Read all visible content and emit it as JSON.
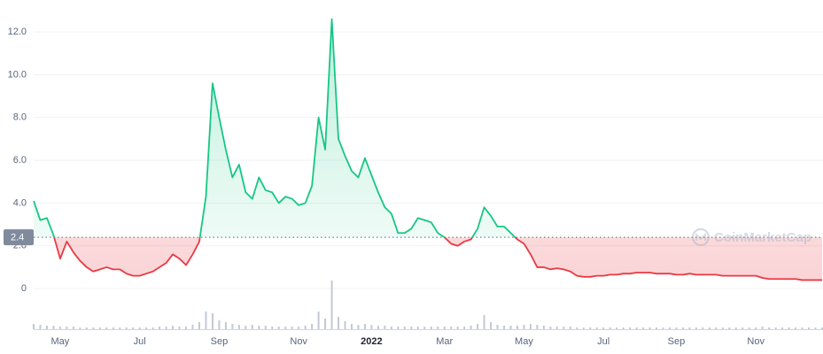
{
  "chart_data": {
    "type": "line",
    "categories": [
      null,
      null,
      null,
      null,
      "May",
      null,
      null,
      null,
      null,
      null,
      null,
      null,
      null,
      null,
      null,
      null,
      "Jul",
      null,
      null,
      null,
      null,
      null,
      null,
      null,
      null,
      null,
      null,
      null,
      "Sep",
      null,
      null,
      null,
      null,
      null,
      null,
      null,
      null,
      null,
      null,
      null,
      "Nov",
      null,
      null,
      null,
      null,
      null,
      null,
      null,
      null,
      null,
      null,
      "2022",
      null,
      null,
      null,
      null,
      null,
      null,
      null,
      null,
      null,
      null,
      "Mar",
      null,
      null,
      null,
      null,
      null,
      null,
      null,
      null,
      null,
      null,
      null,
      "May",
      null,
      null,
      null,
      null,
      null,
      null,
      null,
      null,
      null,
      null,
      null,
      "Jul",
      null,
      null,
      null,
      null,
      null,
      null,
      null,
      null,
      null,
      null,
      "Sep",
      null,
      null,
      null,
      null,
      null,
      null,
      null,
      null,
      null,
      null,
      null,
      "Nov",
      null,
      null,
      null,
      null,
      null,
      null,
      null,
      null,
      null,
      null
    ],
    "values": [
      4.1,
      3.2,
      3.3,
      2.5,
      1.4,
      2.2,
      1.7,
      1.3,
      1.0,
      0.8,
      0.9,
      1.0,
      0.9,
      0.9,
      0.7,
      0.6,
      0.6,
      0.7,
      0.8,
      1.0,
      1.2,
      1.6,
      1.4,
      1.1,
      1.6,
      2.2,
      4.3,
      9.6,
      8.0,
      6.5,
      5.2,
      5.8,
      4.5,
      4.2,
      5.2,
      4.6,
      4.5,
      4.0,
      4.3,
      4.2,
      3.9,
      4.0,
      4.8,
      8.0,
      6.5,
      12.6,
      7.0,
      6.2,
      5.5,
      5.2,
      6.1,
      5.3,
      4.5,
      3.8,
      3.5,
      2.6,
      2.6,
      2.8,
      3.3,
      3.2,
      3.1,
      2.6,
      2.4,
      2.1,
      2.0,
      2.2,
      2.3,
      2.8,
      3.8,
      3.4,
      2.9,
      2.9,
      2.6,
      2.3,
      2.1,
      1.6,
      1.0,
      1.0,
      0.9,
      0.95,
      0.9,
      0.8,
      0.6,
      0.55,
      0.55,
      0.6,
      0.6,
      0.65,
      0.65,
      0.7,
      0.7,
      0.75,
      0.75,
      0.75,
      0.7,
      0.7,
      0.7,
      0.65,
      0.65,
      0.7,
      0.65,
      0.65,
      0.65,
      0.65,
      0.6,
      0.6,
      0.6,
      0.6,
      0.6,
      0.6,
      0.5,
      0.45,
      0.45,
      0.45,
      0.45,
      0.45,
      0.4,
      0.4,
      0.4,
      0.4
    ],
    "volume": [
      6,
      5,
      4,
      4,
      3,
      3,
      3,
      2,
      2,
      2,
      2,
      2,
      2,
      2,
      2,
      2,
      2,
      2,
      2,
      3,
      3,
      4,
      3,
      3,
      5,
      8,
      20,
      18,
      10,
      8,
      6,
      5,
      4,
      5,
      4,
      4,
      3,
      3,
      3,
      3,
      3,
      4,
      6,
      20,
      12,
      55,
      14,
      9,
      6,
      5,
      6,
      5,
      4,
      4,
      3,
      3,
      3,
      3,
      3,
      3,
      3,
      3,
      3,
      3,
      3,
      3,
      4,
      6,
      16,
      8,
      5,
      4,
      4,
      4,
      5,
      6,
      5,
      4,
      3,
      3,
      3,
      3,
      2,
      2,
      2,
      2,
      2,
      2,
      2,
      2,
      2,
      2,
      2,
      2,
      2,
      2,
      2,
      2,
      2,
      2,
      2,
      2,
      2,
      2,
      2,
      2,
      2,
      2,
      2,
      2,
      3,
      2,
      2,
      2,
      2,
      2,
      2,
      2,
      2,
      2
    ],
    "baseline": 2.4,
    "up_color": "#16c784",
    "down_color": "#ea3943",
    "volume_color": "#c3c9d3",
    "ylim": [
      -1.9,
      13
    ],
    "yticks": [
      0,
      {
        "value": 2,
        "label": "2.0"
      },
      {
        "value": 4,
        "label": "4.0"
      },
      {
        "value": 6,
        "label": "6.0"
      },
      {
        "value": 8,
        "label": "8.0"
      },
      {
        "value": 10,
        "label": "10.0"
      },
      {
        "value": 12,
        "label": "12.0"
      }
    ],
    "grid": true,
    "watermark": "CoinMarketCap"
  }
}
